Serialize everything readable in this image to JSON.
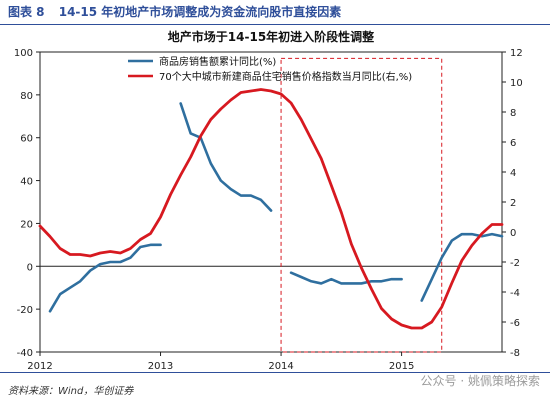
{
  "figure": {
    "label": "图表 8",
    "title": "14-15 年初地产市场调整成为资金流向股市直接因素"
  },
  "footer": {
    "source": "资料来源：Wind，华创证券",
    "watermark": "公众号 · 姚佩策略探索"
  },
  "chart_data": {
    "type": "line",
    "title": "地产市场于14-15年初进入阶段性调整",
    "x_ticks": [
      "2012",
      "2013",
      "2014",
      "2015"
    ],
    "y_left_ticks": [
      "-40",
      "-20",
      "0",
      "20",
      "40",
      "60",
      "80",
      "100"
    ],
    "y_right_ticks": [
      "-8",
      "-6",
      "-4",
      "-2",
      "0",
      "2",
      "4",
      "6",
      "8",
      "10",
      "12"
    ],
    "left_ylim": [
      -40,
      100
    ],
    "right_ylim": [
      -8,
      12
    ],
    "xlim": [
      2012.0,
      2015.833
    ],
    "grid": false,
    "legend_position": "top-center",
    "highlight_box": {
      "x_start": 2014.0,
      "x_end": 2015.333,
      "y_start": -40,
      "y_end": 97,
      "style": "dashed red"
    },
    "series": [
      {
        "name": "商品房销售额累计同比(%)",
        "axis": "left",
        "color": "#2f6f9f",
        "segments": [
          {
            "x": [
              2012.083,
              2012.167,
              2012.25,
              2012.333,
              2012.417,
              2012.5,
              2012.583,
              2012.667,
              2012.75,
              2012.833,
              2012.917,
              2013.0
            ],
            "y": [
              -21,
              -13,
              -10,
              -7,
              -2,
              1,
              2,
              2,
              4,
              9,
              10,
              10
            ]
          },
          {
            "x": [
              2013.167,
              2013.25,
              2013.333,
              2013.417,
              2013.5,
              2013.583,
              2013.667,
              2013.75,
              2013.833,
              2013.917
            ],
            "y": [
              76,
              62,
              60,
              48,
              40,
              36,
              33,
              33,
              31,
              26
            ]
          },
          {
            "x": [
              2014.083,
              2014.167,
              2014.25,
              2014.333,
              2014.417,
              2014.5,
              2014.583,
              2014.667,
              2014.75,
              2014.833,
              2014.917,
              2015.0
            ],
            "y": [
              -3,
              -5,
              -7,
              -8,
              -6,
              -8,
              -8,
              -8,
              -7,
              -7,
              -6,
              -6
            ]
          },
          {
            "x": [
              2015.167,
              2015.25,
              2015.333,
              2015.417,
              2015.5,
              2015.583,
              2015.667,
              2015.75,
              2015.833
            ],
            "y": [
              -16,
              -6,
              4,
              12,
              15,
              15,
              14,
              15,
              14
            ]
          }
        ]
      },
      {
        "name": "70个大中城市新建商品住宅销售价格指数当月同比(右,%)",
        "axis": "right",
        "color": "#d71920",
        "segments": [
          {
            "x": [
              2012.0,
              2012.083,
              2012.167,
              2012.25,
              2012.333,
              2012.417,
              2012.5,
              2012.583,
              2012.667,
              2012.75,
              2012.833,
              2012.917,
              2013.0,
              2013.083,
              2013.167,
              2013.25,
              2013.333,
              2013.417,
              2013.5,
              2013.583,
              2013.667,
              2013.75,
              2013.833,
              2013.917,
              2014.0,
              2014.083,
              2014.167,
              2014.25,
              2014.333,
              2014.417,
              2014.5,
              2014.583,
              2014.667,
              2014.75,
              2014.833,
              2014.917,
              2015.0,
              2015.083,
              2015.167,
              2015.25,
              2015.333,
              2015.417,
              2015.5,
              2015.583,
              2015.667,
              2015.75,
              2015.833
            ],
            "y": [
              0.4,
              -0.3,
              -1.1,
              -1.5,
              -1.5,
              -1.6,
              -1.4,
              -1.3,
              -1.4,
              -1.1,
              -0.5,
              -0.1,
              1.0,
              2.5,
              3.8,
              5.0,
              6.4,
              7.5,
              8.2,
              8.8,
              9.3,
              9.4,
              9.5,
              9.4,
              9.2,
              8.6,
              7.5,
              6.2,
              4.9,
              3.1,
              1.3,
              -0.8,
              -2.4,
              -3.8,
              -5.1,
              -5.8,
              -6.2,
              -6.4,
              -6.4,
              -6.0,
              -5.0,
              -3.4,
              -1.9,
              -0.9,
              -0.1,
              0.5,
              0.5
            ]
          }
        ]
      }
    ]
  }
}
